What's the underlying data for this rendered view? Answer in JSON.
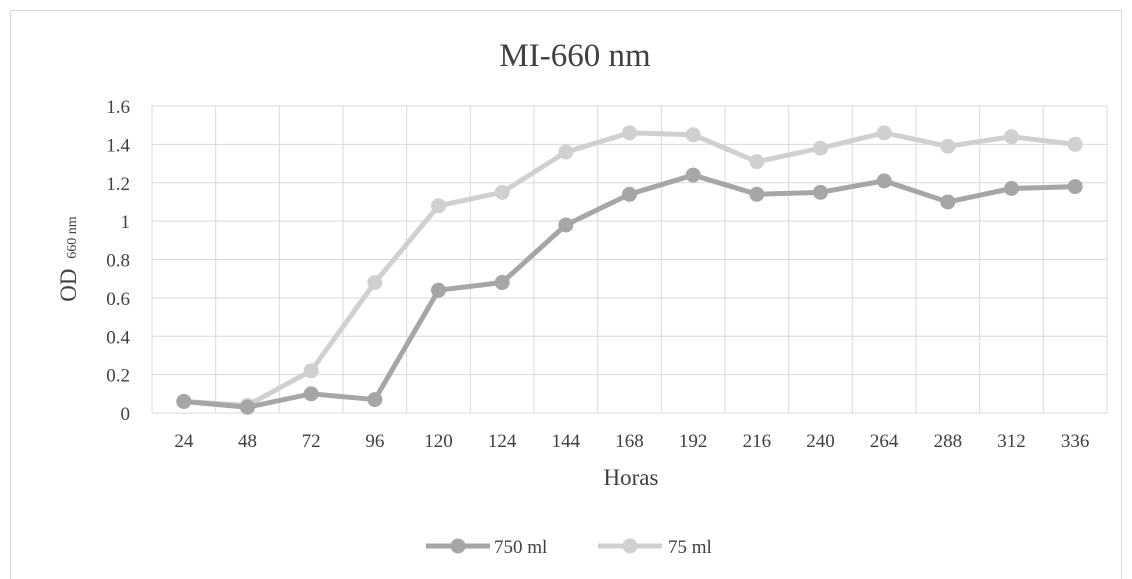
{
  "chart_data": {
    "type": "line",
    "title": "MI-660 nm",
    "xlabel": "Horas",
    "ylabel": "OD",
    "ylabel_sub": "660 nm",
    "categories": [
      "24",
      "48",
      "72",
      "96",
      "120",
      "124",
      "144",
      "168",
      "192",
      "216",
      "240",
      "264",
      "288",
      "312",
      "336"
    ],
    "yticks": [
      "0",
      "0.2",
      "0.4",
      "0.6",
      "0.8",
      "1",
      "1.2",
      "1.4",
      "1.6"
    ],
    "ylim": [
      0,
      1.6
    ],
    "grid": true,
    "legend_position": "bottom",
    "series": [
      {
        "name": "750 ml",
        "color": "#a6a6a6",
        "values": [
          0.06,
          0.03,
          0.1,
          0.07,
          0.64,
          0.68,
          0.98,
          1.14,
          1.24,
          1.14,
          1.15,
          1.21,
          1.1,
          1.17,
          1.18
        ]
      },
      {
        "name": "75 ml",
        "color": "#d0d0d0",
        "values": [
          0.06,
          0.04,
          0.22,
          0.68,
          1.08,
          1.15,
          1.36,
          1.46,
          1.45,
          1.31,
          1.38,
          1.46,
          1.39,
          1.44,
          1.4
        ]
      }
    ]
  }
}
